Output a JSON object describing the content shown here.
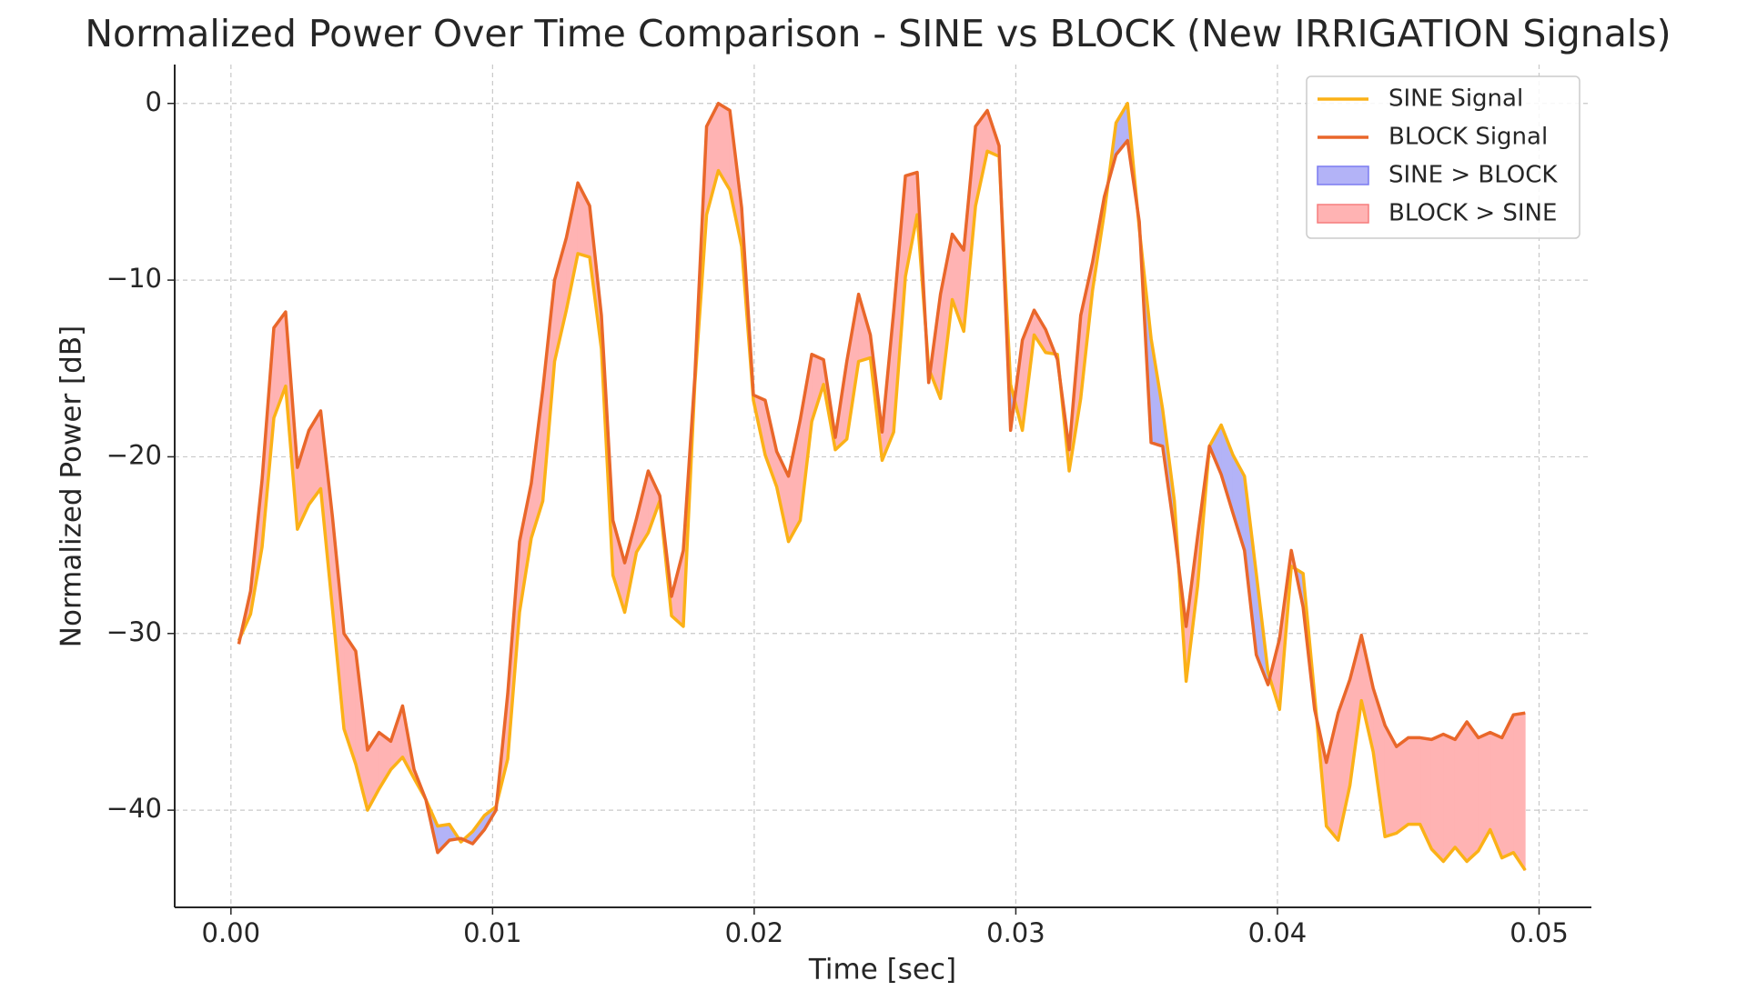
{
  "chart_data": {
    "type": "line",
    "title": "Normalized Power Over Time Comparison - SINE vs BLOCK (New IRRIGATION Signals)",
    "xlabel": "Time [sec]",
    "ylabel": "Normalized Power [dB]",
    "x": [
      0.0003,
      0.00075,
      0.00119,
      0.00164,
      0.00209,
      0.00254,
      0.00298,
      0.00343,
      0.00388,
      0.00432,
      0.00477,
      0.00522,
      0.00566,
      0.00611,
      0.00656,
      0.007,
      0.00745,
      0.0079,
      0.00835,
      0.00879,
      0.00924,
      0.00969,
      0.01013,
      0.01058,
      0.01103,
      0.01148,
      0.01192,
      0.01237,
      0.01282,
      0.01326,
      0.01371,
      0.01416,
      0.0146,
      0.01505,
      0.0155,
      0.01595,
      0.01639,
      0.01684,
      0.01729,
      0.01773,
      0.01818,
      0.01863,
      0.01907,
      0.01952,
      0.01997,
      0.02042,
      0.02086,
      0.02131,
      0.02176,
      0.0222,
      0.02265,
      0.0231,
      0.02354,
      0.02399,
      0.02444,
      0.02489,
      0.02533,
      0.02578,
      0.02623,
      0.02667,
      0.02712,
      0.02757,
      0.02801,
      0.02846,
      0.02891,
      0.02936,
      0.0298,
      0.03025,
      0.0307,
      0.03114,
      0.03159,
      0.03204,
      0.03248,
      0.03293,
      0.03338,
      0.03383,
      0.03427,
      0.03472,
      0.03517,
      0.03561,
      0.03606,
      0.03651,
      0.03695,
      0.0374,
      0.03785,
      0.0383,
      0.03874,
      0.03919,
      0.03964,
      0.04008,
      0.04053,
      0.04098,
      0.04142,
      0.04187,
      0.04232,
      0.04277,
      0.04321,
      0.04366,
      0.04411,
      0.04455,
      0.045,
      0.04545,
      0.04589,
      0.04634,
      0.04679,
      0.04724,
      0.04768,
      0.04813,
      0.04858,
      0.04902,
      0.04947
    ],
    "series": [
      {
        "name": "SINE Signal",
        "color": "#fbb117",
        "values": [
          -30.4,
          -28.9,
          -25.1,
          -17.8,
          -16.0,
          -24.1,
          -22.7,
          -21.8,
          -28.6,
          -35.4,
          -37.4,
          -40.0,
          -38.8,
          -37.7,
          -37.0,
          -38.2,
          -39.4,
          -40.9,
          -40.8,
          -41.8,
          -41.2,
          -40.3,
          -39.8,
          -37.1,
          -28.8,
          -24.6,
          -22.5,
          -14.6,
          -11.7,
          -8.5,
          -8.7,
          -13.9,
          -26.7,
          -28.8,
          -25.4,
          -24.3,
          -22.5,
          -29.0,
          -29.6,
          -15.9,
          -6.3,
          -3.8,
          -4.9,
          -8.1,
          -16.8,
          -19.9,
          -21.7,
          -24.8,
          -23.6,
          -18.0,
          -15.9,
          -19.6,
          -19.0,
          -14.6,
          -14.4,
          -20.2,
          -18.6,
          -9.8,
          -6.3,
          -15.0,
          -16.7,
          -11.1,
          -12.9,
          -5.8,
          -2.7,
          -3.0,
          -15.9,
          -18.5,
          -13.1,
          -14.1,
          -14.2,
          -20.8,
          -16.7,
          -10.6,
          -6.2,
          -1.1,
          0,
          -7.1,
          -13.3,
          -17.3,
          -22.5,
          -32.7,
          -27.3,
          -19.4,
          -18.2,
          -19.9,
          -21.1,
          -26.6,
          -32.2,
          -34.3,
          -26.2,
          -26.6,
          -33.5,
          -40.9,
          -41.7,
          -38.6,
          -33.8,
          -36.7,
          -41.5,
          -41.3,
          -40.8,
          -40.8,
          -42.2,
          -42.9,
          -42.1,
          -42.9,
          -42.3,
          -41.1,
          -42.7,
          -42.4,
          -43.4
        ]
      },
      {
        "name": "BLOCK Signal",
        "color": "#e9672a",
        "values": [
          -30.6,
          -27.6,
          -21.3,
          -12.7,
          -11.8,
          -20.6,
          -18.5,
          -17.4,
          -23.4,
          -30.0,
          -31.0,
          -36.6,
          -35.6,
          -36.1,
          -34.1,
          -37.7,
          -39.4,
          -42.4,
          -41.7,
          -41.6,
          -41.9,
          -41.1,
          -40.0,
          -33.4,
          -24.8,
          -21.5,
          -16.2,
          -10.0,
          -7.6,
          -4.5,
          -5.8,
          -12.0,
          -23.6,
          -26.0,
          -23.5,
          -20.8,
          -22.2,
          -27.9,
          -25.3,
          -15.5,
          -1.3,
          0,
          -0.4,
          -5.9,
          -16.5,
          -16.8,
          -19.7,
          -21.1,
          -17.9,
          -14.2,
          -14.5,
          -18.9,
          -14.6,
          -10.8,
          -13.1,
          -18.6,
          -11.8,
          -4.1,
          -3.9,
          -15.8,
          -10.8,
          -7.4,
          -8.3,
          -1.3,
          -0.4,
          -2.4,
          -18.5,
          -13.4,
          -11.7,
          -12.8,
          -14.5,
          -19.6,
          -12.0,
          -9.0,
          -5.3,
          -2.9,
          -2.1,
          -6.7,
          -19.2,
          -19.4,
          -24.2,
          -29.6,
          -24.5,
          -19.4,
          -21.0,
          -23.2,
          -25.3,
          -31.2,
          -32.9,
          -30.3,
          -25.3,
          -28.5,
          -34.3,
          -37.3,
          -34.5,
          -32.6,
          -30.1,
          -33.1,
          -35.2,
          -36.4,
          -35.9,
          -35.9,
          -36.0,
          -35.7,
          -36.0,
          -35.0,
          -35.9,
          -35.6,
          -35.9,
          -34.6,
          -34.5
        ]
      }
    ],
    "fills": [
      {
        "name": "SINE > BLOCK",
        "color": "#b3b3f7",
        "edge": "#7b7bf0"
      },
      {
        "name": "BLOCK > SINE",
        "color": "#ffb3b3",
        "edge": "#f57d7d"
      }
    ],
    "xlim": [
      -0.00215,
      0.052
    ],
    "ylim": [
      -45.5,
      2.2
    ],
    "xticks": [
      {
        "value": 0,
        "label": "0.00"
      },
      0.01,
      0.02,
      0.03,
      0.04,
      0.05
    ],
    "yticks": [
      0,
      {
        "value": -10,
        "label": "−10"
      },
      {
        "value": -20,
        "label": "−20"
      },
      {
        "value": -30,
        "label": "−30"
      },
      {
        "value": -40,
        "label": "−40"
      }
    ],
    "grid": true,
    "legend": "upper right"
  }
}
